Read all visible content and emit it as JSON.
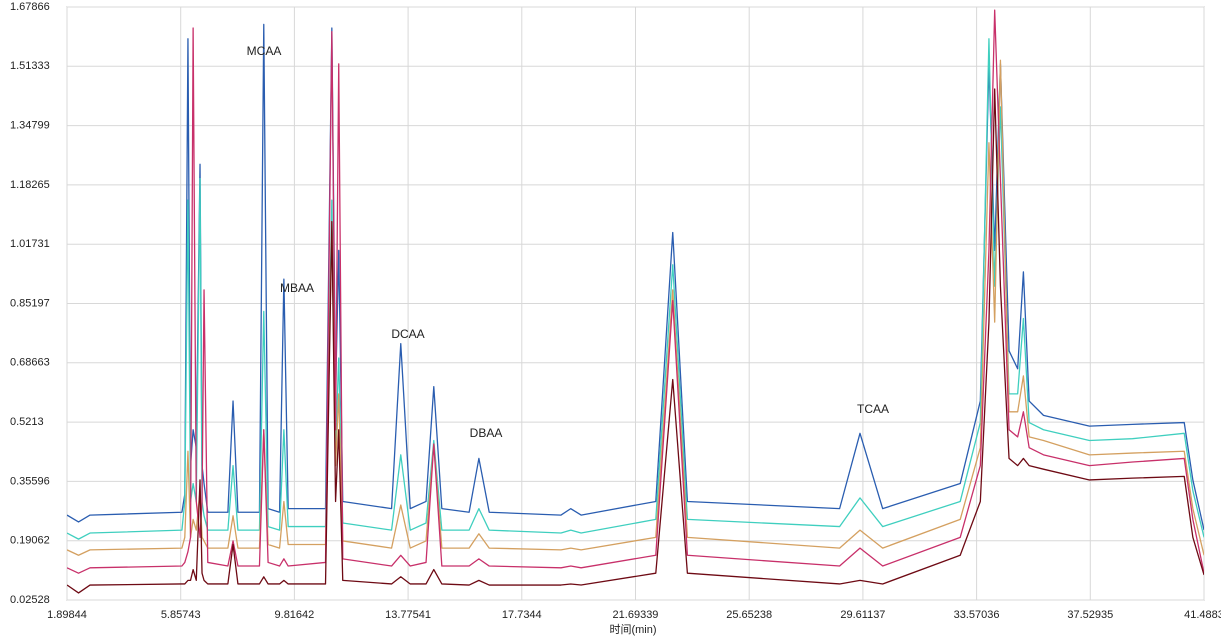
{
  "chart_data": {
    "type": "line",
    "xlabel": "时间(min)",
    "annotations": [
      "MCAA",
      "MBAA",
      "DCAA",
      "DBAA",
      "TCAA"
    ],
    "xlim": [
      1.89844,
      41.4883
    ],
    "xticks": [
      1.89844,
      5.85743,
      9.81642,
      13.77541,
      17.7344,
      21.69339,
      25.65238,
      29.61137,
      33.57036,
      37.52935,
      41.4883
    ],
    "ylim": [
      0.02528,
      1.67866
    ],
    "yticks": [
      0.02528,
      0.19062,
      0.35596,
      0.5213,
      0.68663,
      0.85197,
      1.01731,
      1.18265,
      1.34799,
      1.51333,
      1.67866
    ],
    "grid": true,
    "x": [
      1.9,
      2.3,
      2.7,
      5.9,
      6.0,
      6.11,
      6.2,
      6.29,
      6.4,
      6.53,
      6.6,
      6.67,
      6.8,
      7.5,
      7.68,
      7.85,
      8.6,
      8.75,
      8.9,
      9.3,
      9.45,
      9.6,
      10.9,
      11.12,
      11.25,
      11.36,
      11.5,
      13.2,
      13.52,
      13.85,
      14.4,
      14.67,
      14.95,
      15.9,
      16.24,
      16.6,
      19.1,
      19.44,
      19.8,
      22.4,
      22.99,
      23.5,
      28.8,
      29.51,
      30.3,
      33.0,
      33.7,
      34.0,
      34.2,
      34.4,
      34.7,
      35.0,
      35.2,
      35.4,
      35.9,
      37.5,
      39.0,
      40.8,
      41.1,
      41.49
    ],
    "series": [
      {
        "color": "#2a5db0",
        "values": [
          0.262,
          0.243,
          0.262,
          0.27,
          0.32,
          1.59,
          0.4,
          0.5,
          0.45,
          1.24,
          0.4,
          0.35,
          0.27,
          0.27,
          0.58,
          0.27,
          0.27,
          1.63,
          0.28,
          0.27,
          0.92,
          0.28,
          0.28,
          1.62,
          0.6,
          1.0,
          0.3,
          0.28,
          0.74,
          0.28,
          0.3,
          0.62,
          0.28,
          0.27,
          0.42,
          0.27,
          0.262,
          0.28,
          0.262,
          0.3,
          1.05,
          0.3,
          0.28,
          0.49,
          0.28,
          0.35,
          0.58,
          1.52,
          1.0,
          1.52,
          0.72,
          0.67,
          0.94,
          0.58,
          0.54,
          0.51,
          0.515,
          0.52,
          0.36,
          0.22
        ]
      },
      {
        "color": "#3fcfbf",
        "values": [
          0.212,
          0.195,
          0.212,
          0.22,
          0.3,
          1.14,
          0.3,
          0.35,
          0.3,
          1.2,
          0.3,
          0.26,
          0.22,
          0.22,
          0.4,
          0.22,
          0.22,
          0.83,
          0.23,
          0.22,
          0.5,
          0.23,
          0.23,
          1.14,
          0.45,
          0.7,
          0.24,
          0.22,
          0.43,
          0.22,
          0.24,
          0.47,
          0.22,
          0.22,
          0.28,
          0.22,
          0.212,
          0.22,
          0.212,
          0.25,
          0.96,
          0.25,
          0.23,
          0.31,
          0.23,
          0.3,
          0.52,
          1.59,
          0.9,
          1.4,
          0.6,
          0.6,
          0.81,
          0.52,
          0.5,
          0.47,
          0.475,
          0.49,
          0.33,
          0.2
        ]
      },
      {
        "color": "#d4a060",
        "values": [
          0.165,
          0.15,
          0.165,
          0.17,
          0.2,
          0.44,
          0.2,
          0.25,
          0.22,
          0.33,
          0.2,
          0.19,
          0.17,
          0.17,
          0.26,
          0.17,
          0.17,
          0.5,
          0.18,
          0.17,
          0.3,
          0.18,
          0.18,
          1.08,
          0.4,
          0.6,
          0.19,
          0.17,
          0.29,
          0.17,
          0.19,
          0.46,
          0.17,
          0.17,
          0.21,
          0.17,
          0.165,
          0.17,
          0.165,
          0.2,
          0.89,
          0.2,
          0.17,
          0.22,
          0.17,
          0.25,
          0.45,
          1.3,
          0.8,
          1.53,
          0.55,
          0.55,
          0.65,
          0.48,
          0.47,
          0.43,
          0.435,
          0.44,
          0.28,
          0.15
        ]
      },
      {
        "color": "#c8306a",
        "values": [
          0.115,
          0.1,
          0.115,
          0.12,
          0.13,
          0.16,
          0.2,
          1.62,
          0.3,
          0.2,
          0.3,
          0.89,
          0.13,
          0.12,
          0.19,
          0.12,
          0.12,
          0.5,
          0.13,
          0.12,
          0.14,
          0.12,
          0.13,
          1.61,
          0.5,
          1.52,
          0.14,
          0.12,
          0.15,
          0.12,
          0.13,
          0.46,
          0.12,
          0.12,
          0.14,
          0.12,
          0.115,
          0.12,
          0.115,
          0.15,
          0.86,
          0.15,
          0.12,
          0.17,
          0.12,
          0.2,
          0.4,
          1.0,
          1.67,
          1.2,
          0.5,
          0.48,
          0.55,
          0.45,
          0.43,
          0.4,
          0.41,
          0.42,
          0.25,
          0.1
        ]
      },
      {
        "color": "#6e0a14",
        "values": [
          0.067,
          0.045,
          0.067,
          0.07,
          0.07,
          0.08,
          0.08,
          0.11,
          0.08,
          0.36,
          0.1,
          0.08,
          0.07,
          0.07,
          0.18,
          0.07,
          0.07,
          0.09,
          0.07,
          0.07,
          0.08,
          0.07,
          0.07,
          1.08,
          0.3,
          0.5,
          0.08,
          0.07,
          0.09,
          0.07,
          0.07,
          0.11,
          0.07,
          0.067,
          0.08,
          0.067,
          0.067,
          0.07,
          0.067,
          0.1,
          0.64,
          0.1,
          0.07,
          0.08,
          0.07,
          0.15,
          0.3,
          0.8,
          1.45,
          0.9,
          0.42,
          0.4,
          0.42,
          0.4,
          0.39,
          0.36,
          0.365,
          0.37,
          0.2,
          0.095
        ]
      }
    ]
  }
}
